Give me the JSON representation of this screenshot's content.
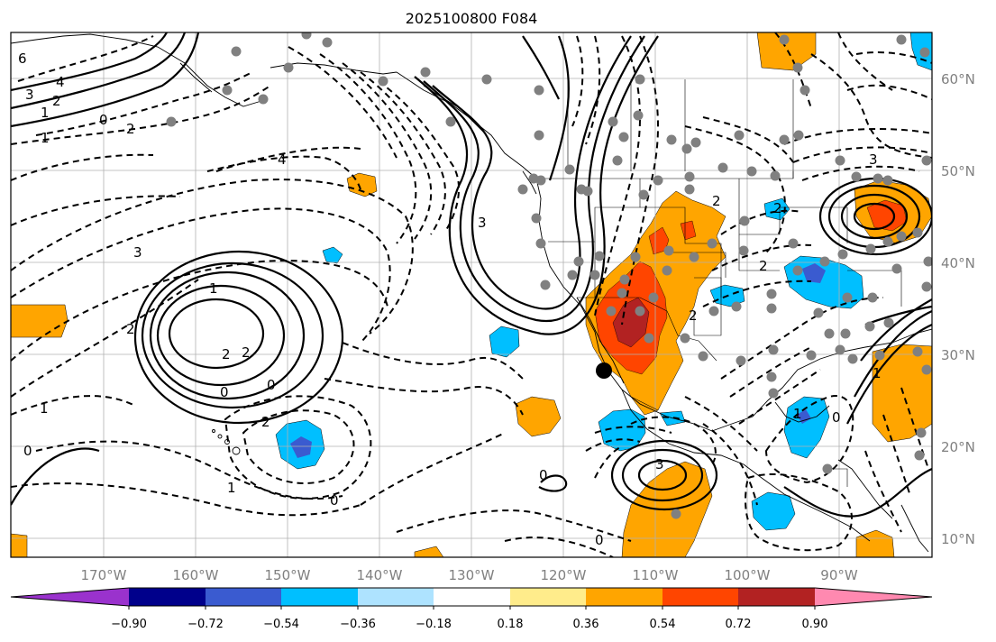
{
  "title": "2025100800 F084",
  "lon_labels": [
    "170°W",
    "160°W",
    "150°W",
    "140°W",
    "130°W",
    "120°W",
    "110°W",
    "100°W",
    "90°W"
  ],
  "lat_labels": [
    "60°N",
    "50°N",
    "40°N",
    "30°N",
    "20°N",
    "10°N"
  ],
  "colorbar": {
    "ticks": [
      "−0.90",
      "−0.72",
      "−0.54",
      "−0.36",
      "−0.18",
      "0.18",
      "0.36",
      "0.54",
      "0.72",
      "0.90"
    ],
    "colors": [
      "#9a32cd",
      "#00008b",
      "#3a5bd0",
      "#00bfff",
      "#aee3ff",
      "#ffffff",
      "#ffec8b",
      "#ffa500",
      "#ff4500",
      "#b22222",
      "#ff89b0"
    ]
  },
  "contour_labels": [
    "6",
    "4",
    "3",
    "2",
    "1",
    "0",
    "2",
    "1",
    "4",
    "3",
    "3",
    "2",
    "2",
    "1",
    "2",
    "0",
    "0",
    "2",
    "0",
    "1",
    "0",
    "1",
    "3",
    "0",
    "0",
    "2",
    "2",
    "2",
    "3",
    "1",
    "1",
    "2",
    "0"
  ],
  "colors": {
    "orange": "#ffa500",
    "red": "#ff4500",
    "darkred": "#b22222",
    "cyan": "#00bfff",
    "blue": "#3a5bd0",
    "station": "#808080"
  }
}
